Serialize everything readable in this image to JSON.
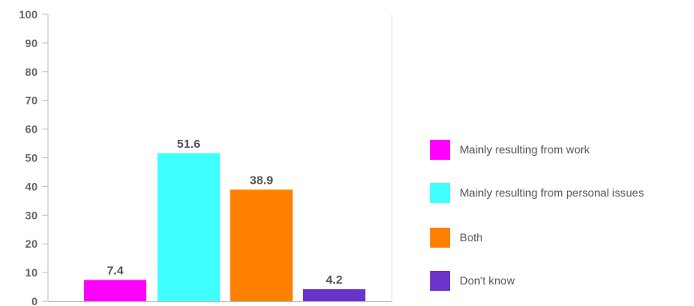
{
  "chart_data": {
    "type": "bar",
    "categories": [
      "Mainly resulting from work",
      "Mainly resulting from personal issues",
      "Both",
      "Don't know"
    ],
    "values": [
      7.4,
      51.6,
      38.9,
      4.2
    ],
    "value_labels": [
      "7.4",
      "51.6",
      "38.9",
      "4.2"
    ],
    "colors": [
      "#ff00ff",
      "#40ffff",
      "#ff8000",
      "#6a33cc"
    ],
    "ylim": [
      0,
      100
    ],
    "yticks": [
      "0",
      "10",
      "20",
      "30",
      "40",
      "50",
      "60",
      "70",
      "80",
      "90",
      "100"
    ],
    "grid": false,
    "legend_placement": "right",
    "title": "",
    "xlabel": "",
    "ylabel": ""
  }
}
